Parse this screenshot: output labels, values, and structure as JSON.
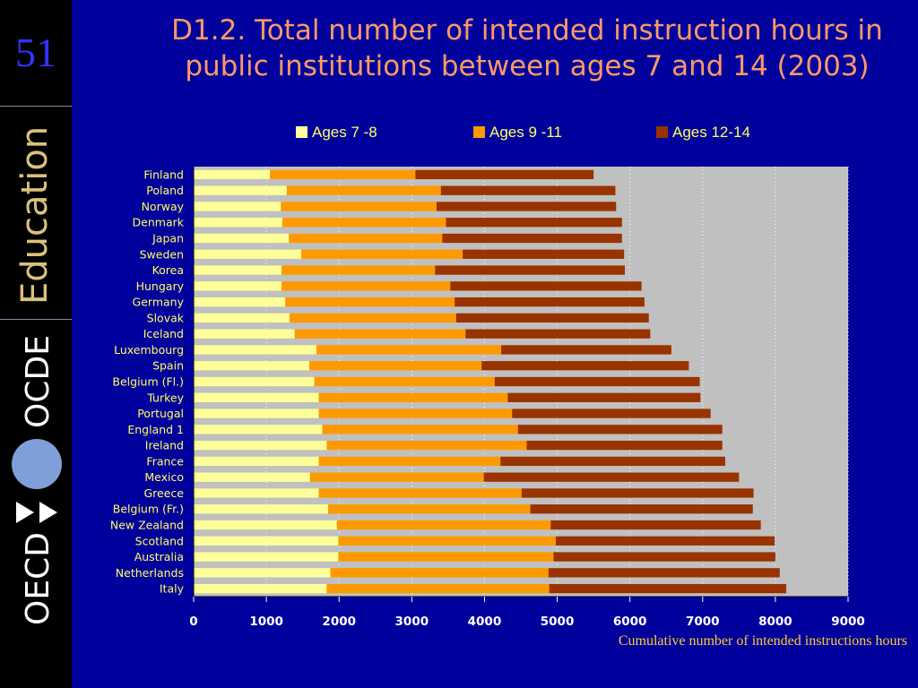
{
  "slide_number": "51",
  "brand": {
    "education": "Education",
    "ocde": "OCDE",
    "oecd": "OECD"
  },
  "colors": {
    "background": "#00009c",
    "title": "#ff9966",
    "labels": "#ffff66",
    "plot_bg": "#c0c0c0"
  },
  "chart_data": {
    "type": "bar",
    "orientation": "horizontal",
    "stacked": true,
    "title": "D1.2. Total number of intended instruction hours in public institutions between ages 7 and 14 (2003)",
    "xlabel": "Cumulative number of intended instructions hours",
    "xlim": [
      0,
      9000
    ],
    "xticks": [
      "0",
      "1000",
      "2000",
      "3000",
      "4000",
      "5000",
      "6000",
      "7000",
      "8000",
      "9000"
    ],
    "legend_position": "top",
    "grid": "vertical dotted",
    "categories": [
      "Finland",
      "Poland",
      "Norway",
      "Denmark",
      "Japan",
      "Sweden",
      "Korea",
      "Hungary",
      "Germany",
      "Slovak",
      "Iceland",
      "Luxembourg",
      "Spain",
      "Belgium (Fl.)",
      "Turkey",
      "Portugal",
      "England 1",
      "Ireland",
      "France",
      "Mexico",
      "Greece",
      "Belgium (Fr.)",
      "New Zealand",
      "Scotland",
      "Australia",
      "Netherlands",
      "Italy"
    ],
    "series": [
      {
        "name": "Ages 7 -8",
        "color": "#ffff99",
        "values": [
          1050,
          1280,
          1200,
          1220,
          1310,
          1480,
          1210,
          1210,
          1260,
          1320,
          1390,
          1690,
          1590,
          1660,
          1720,
          1720,
          1770,
          1830,
          1720,
          1600,
          1720,
          1850,
          1970,
          1990,
          1990,
          1880,
          1830
        ]
      },
      {
        "name": "Ages 9 -11",
        "color": "#ff9900",
        "values": [
          2000,
          2120,
          2140,
          2250,
          2110,
          2220,
          2110,
          2320,
          2330,
          2290,
          2350,
          2540,
          2370,
          2480,
          2600,
          2660,
          2690,
          2750,
          2500,
          2390,
          2790,
          2780,
          2940,
          2990,
          2960,
          3000,
          3060
        ]
      },
      {
        "name": "Ages 12-14",
        "color": "#993300",
        "values": [
          2450,
          2400,
          2470,
          2420,
          2470,
          2220,
          2610,
          2630,
          2610,
          2650,
          2540,
          2340,
          2850,
          2820,
          2650,
          2730,
          2810,
          2690,
          3090,
          3510,
          3190,
          3060,
          2890,
          3010,
          3050,
          3180,
          3260
        ]
      }
    ]
  }
}
